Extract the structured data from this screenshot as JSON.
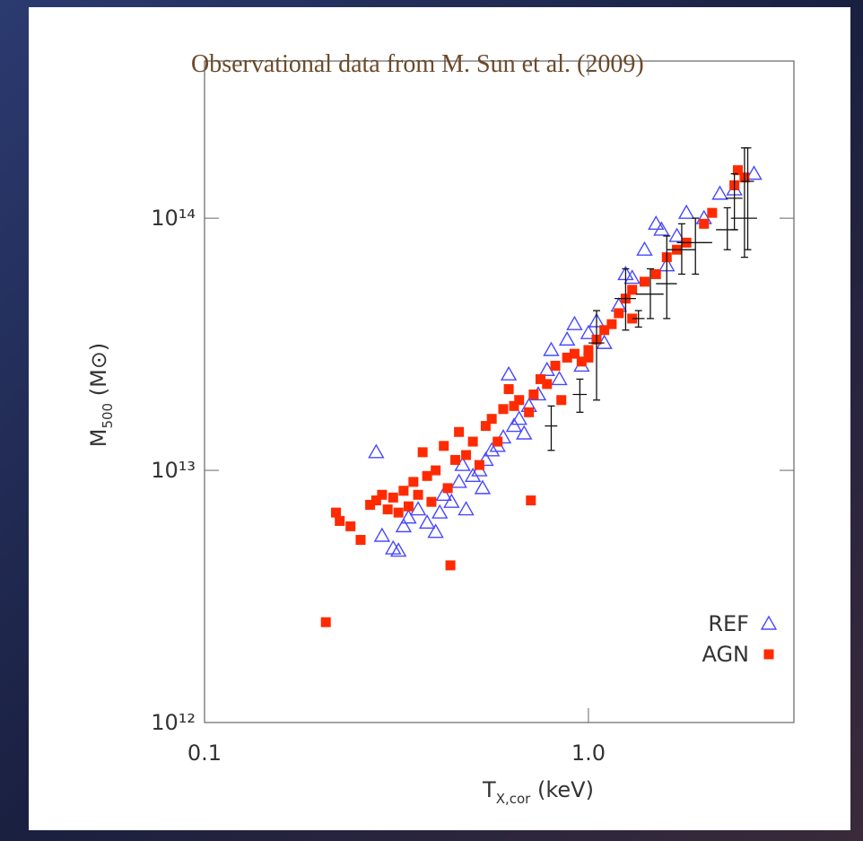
{
  "chart_data": {
    "type": "scatter",
    "annotation": "Observational data from M. Sun et al. (2009)",
    "xlabel": {
      "main": "T",
      "sub": "X,cor",
      "rest": " (keV)"
    },
    "ylabel": {
      "main": "M",
      "sub": "500",
      "rest": " (M⊙)"
    },
    "xscale": "log",
    "yscale": "log",
    "xlim": [
      0.1,
      3.43
    ],
    "ylim": [
      1000000000000.0,
      420000000000000.0
    ],
    "xticks": [
      0.1,
      {
        "value": 1,
        "label": "1.0"
      }
    ],
    "yticks": [
      {
        "value": 1000000000000.0,
        "label": "10¹²"
      },
      {
        "value": 10000000000000.0,
        "label": "10¹³"
      },
      {
        "value": 100000000000000.0,
        "label": "10¹⁴"
      }
    ],
    "legend": "lower right",
    "series": [
      {
        "name": "REF",
        "color": "#4848ff",
        "marker": "triangle",
        "x": [
          0.28,
          0.29,
          0.31,
          0.32,
          0.33,
          0.34,
          0.36,
          0.38,
          0.4,
          0.41,
          0.42,
          0.44,
          0.46,
          0.48,
          0.5,
          0.52,
          0.54,
          0.56,
          0.58,
          0.6,
          0.62,
          0.64,
          0.66,
          0.7,
          0.74,
          0.78,
          0.8,
          0.84,
          0.88,
          0.92,
          0.96,
          1.0,
          1.05,
          1.1,
          1.2,
          1.25,
          1.3,
          1.4,
          1.5,
          1.55,
          1.6,
          1.7,
          1.8,
          2.0,
          2.2,
          2.4,
          2.7,
          0.53,
          0.47,
          0.68
        ],
        "values": [
          11800000000000.0,
          5500000000000.0,
          4900000000000.0,
          4800000000000.0,
          6000000000000.0,
          6500000000000.0,
          7000000000000.0,
          6200000000000.0,
          5700000000000.0,
          6800000000000.0,
          8000000000000.0,
          7500000000000.0,
          9000000000000.0,
          7000000000000.0,
          9500000000000.0,
          10000000000000.0,
          11000000000000.0,
          12000000000000.0,
          12500000000000.0,
          13500000000000.0,
          24000000000000.0,
          15000000000000.0,
          16000000000000.0,
          18000000000000.0,
          20000000000000.0,
          25000000000000.0,
          30000000000000.0,
          23000000000000.0,
          33000000000000.0,
          38000000000000.0,
          26000000000000.0,
          35000000000000.0,
          39000000000000.0,
          32000000000000.0,
          45000000000000.0,
          60000000000000.0,
          58000000000000.0,
          75000000000000.0,
          95000000000000.0,
          90000000000000.0,
          65000000000000.0,
          85000000000000.0,
          105000000000000.0,
          100000000000000.0,
          125000000000000.0,
          130000000000000.0,
          150000000000000.0,
          8500000000000.0,
          10500000000000.0,
          14000000000000.0
        ]
      },
      {
        "name": "AGN",
        "color": "#ff2a00",
        "marker": "square",
        "x": [
          0.207,
          0.22,
          0.225,
          0.24,
          0.255,
          0.27,
          0.28,
          0.29,
          0.3,
          0.31,
          0.32,
          0.33,
          0.34,
          0.35,
          0.36,
          0.37,
          0.38,
          0.39,
          0.4,
          0.42,
          0.43,
          0.437,
          0.45,
          0.46,
          0.48,
          0.5,
          0.52,
          0.54,
          0.56,
          0.58,
          0.6,
          0.62,
          0.64,
          0.66,
          0.7,
          0.708,
          0.72,
          0.75,
          0.78,
          0.82,
          0.85,
          0.88,
          0.92,
          0.96,
          1.0,
          1.05,
          1.1,
          1.15,
          1.2,
          1.25,
          1.3,
          1.4,
          1.5,
          1.6,
          1.7,
          1.8,
          2.0,
          2.1,
          2.4,
          2.45,
          2.55,
          1.3,
          1.0
        ],
        "values": [
          2500000000000.0,
          6800000000000.0,
          6300000000000.0,
          6000000000000.0,
          5300000000000.0,
          7300000000000.0,
          7600000000000.0,
          8000000000000.0,
          7000000000000.0,
          7800000000000.0,
          6800000000000.0,
          8300000000000.0,
          7200000000000.0,
          9000000000000.0,
          8000000000000.0,
          11800000000000.0,
          9500000000000.0,
          7500000000000.0,
          10000000000000.0,
          12500000000000.0,
          8500000000000.0,
          4200000000000.0,
          11000000000000.0,
          14200000000000.0,
          11500000000000.0,
          13000000000000.0,
          10500000000000.0,
          15000000000000.0,
          16000000000000.0,
          13000000000000.0,
          17500000000000.0,
          21000000000000.0,
          18000000000000.0,
          19000000000000.0,
          17000000000000.0,
          7600000000000.0,
          20000000000000.0,
          23000000000000.0,
          22000000000000.0,
          26000000000000.0,
          19000000000000.0,
          28000000000000.0,
          29000000000000.0,
          27000000000000.0,
          30000000000000.0,
          33000000000000.0,
          36000000000000.0,
          38000000000000.0,
          42000000000000.0,
          48000000000000.0,
          52000000000000.0,
          56000000000000.0,
          60000000000000.0,
          70000000000000.0,
          75000000000000.0,
          80000000000000.0,
          95000000000000.0,
          105000000000000.0,
          135000000000000.0,
          155000000000000.0,
          145000000000000.0,
          40000000000000.0,
          28000000000000.0
        ]
      }
    ],
    "error_bar_data": {
      "color": "#111111",
      "x": [
        0.8,
        0.95,
        1.05,
        1.25,
        1.35,
        1.45,
        1.6,
        1.75,
        1.9,
        2.3,
        2.4,
        2.55,
        2.6
      ],
      "x_err": [
        0.03,
        0.04,
        0.05,
        0.08,
        0.05,
        0.12,
        0.1,
        0.15,
        0.2,
        0.15,
        0.12,
        0.2,
        0.1
      ],
      "values": [
        15000000000000.0,
        20000000000000.0,
        32000000000000.0,
        48000000000000.0,
        40000000000000.0,
        50000000000000.0,
        55000000000000.0,
        75000000000000.0,
        80000000000000.0,
        90000000000000.0,
        120000000000000.0,
        100000000000000.0,
        140000000000000.0
      ],
      "y_err_low": [
        3000000000000.0,
        3000000000000.0,
        13000000000000.0,
        12000000000000.0,
        3000000000000.0,
        10000000000000.0,
        15000000000000.0,
        15000000000000.0,
        20000000000000.0,
        15000000000000.0,
        30000000000000.0,
        30000000000000.0,
        65000000000000.0
      ],
      "y_err_high": [
        3000000000000.0,
        3000000000000.0,
        11000000000000.0,
        15000000000000.0,
        3000000000000.0,
        13000000000000.0,
        30000000000000.0,
        20000000000000.0,
        20000000000000.0,
        20000000000000.0,
        30000000000000.0,
        90000000000000.0,
        50000000000000.0
      ]
    }
  }
}
